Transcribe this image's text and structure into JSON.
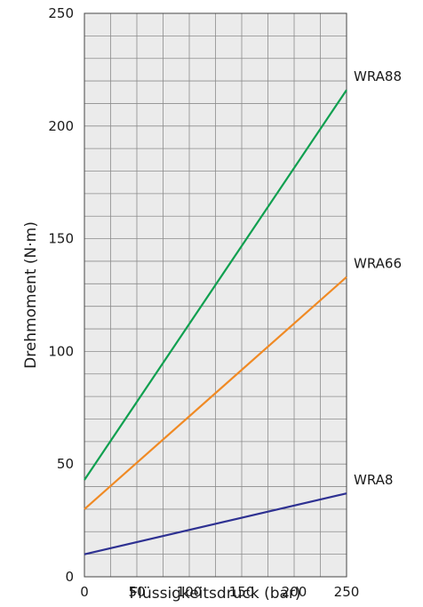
{
  "chart_data": {
    "type": "line",
    "xlabel": "Flüssigkeitsdruck (bar)",
    "ylabel": "Drehmoment (N·m)",
    "xlim": [
      0,
      250
    ],
    "ylim": [
      0,
      250
    ],
    "x_ticks": [
      0,
      50,
      100,
      150,
      200,
      250
    ],
    "y_ticks": [
      0,
      50,
      100,
      150,
      200,
      250
    ],
    "x_minor_step": 25,
    "y_minor_step": 10,
    "grid": true,
    "series": [
      {
        "name": "WRA88",
        "color": "#10a050",
        "x": [
          0,
          250
        ],
        "y": [
          43,
          216
        ]
      },
      {
        "name": "WRA66",
        "color": "#f08a24",
        "x": [
          0,
          250
        ],
        "y": [
          30,
          133
        ]
      },
      {
        "name": "WRA8",
        "color": "#2e3192",
        "x": [
          0,
          250
        ],
        "y": [
          10,
          37
        ]
      }
    ]
  }
}
